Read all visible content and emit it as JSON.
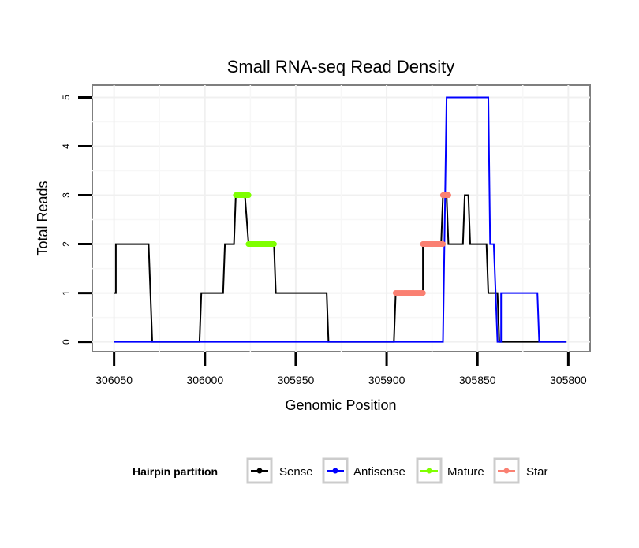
{
  "chart_data": {
    "type": "line",
    "title": "Small RNA-seq Read Density",
    "xlabel": "Genomic Position",
    "ylabel": "Total Reads",
    "xlim": [
      306062,
      305788
    ],
    "ylim": [
      -0.2,
      5.25
    ],
    "x_reversed": true,
    "grid": true,
    "x_ticks": [
      306050,
      306000,
      305950,
      305900,
      305850,
      305800
    ],
    "x_tick_labels": [
      "306050",
      "306000",
      "305950",
      "305900",
      "305850",
      "305800"
    ],
    "y_ticks": [
      0,
      1,
      2,
      3,
      4,
      5
    ],
    "y_tick_labels": [
      "0",
      "1",
      "2",
      "3",
      "4",
      "5"
    ],
    "legend": {
      "title": "Hairpin partition",
      "placement": "bottom",
      "entries": [
        "Sense",
        "Antisense",
        "Mature",
        "Star"
      ]
    },
    "series": [
      {
        "name": "Sense",
        "color": "#000000",
        "kind": "step-line",
        "points": [
          [
            306050,
            1
          ],
          [
            306049,
            1
          ],
          [
            306049,
            2
          ],
          [
            306031,
            2
          ],
          [
            306029,
            0
          ],
          [
            306003,
            0
          ],
          [
            306002,
            1
          ],
          [
            305990,
            1
          ],
          [
            305989,
            2
          ],
          [
            305984,
            2
          ],
          [
            305983,
            3
          ],
          [
            305978,
            3
          ],
          [
            305976,
            2
          ],
          [
            305962,
            2
          ],
          [
            305961,
            1
          ],
          [
            305933,
            1
          ],
          [
            305932,
            0
          ],
          [
            305896,
            0
          ],
          [
            305895,
            1
          ],
          [
            305880,
            1
          ],
          [
            305880,
            2
          ],
          [
            305870,
            2
          ],
          [
            305869,
            3
          ],
          [
            305867,
            3
          ],
          [
            305866,
            2
          ],
          [
            305858,
            2
          ],
          [
            305857,
            3
          ],
          [
            305855,
            3
          ],
          [
            305854,
            2
          ],
          [
            305845,
            2
          ],
          [
            305844,
            1
          ],
          [
            305839,
            1
          ],
          [
            305838,
            0
          ],
          [
            305801,
            0
          ]
        ]
      },
      {
        "name": "Antisense",
        "color": "#0000ff",
        "kind": "step-line",
        "points": [
          [
            306050,
            0
          ],
          [
            305869,
            0
          ],
          [
            305867,
            5
          ],
          [
            305844,
            5
          ],
          [
            305843,
            2
          ],
          [
            305841,
            2
          ],
          [
            305839,
            0
          ],
          [
            305837,
            0
          ],
          [
            305837,
            1
          ],
          [
            305817,
            1
          ],
          [
            305816,
            0
          ],
          [
            305801,
            0
          ]
        ]
      },
      {
        "name": "Mature",
        "color": "#7fff00",
        "kind": "points",
        "segments": [
          [
            [
              305983,
              3
            ],
            [
              305976,
              3
            ]
          ],
          [
            [
              305976,
              2
            ],
            [
              305962,
              2
            ]
          ]
        ]
      },
      {
        "name": "Star",
        "color": "#fa8072",
        "kind": "points",
        "segments": [
          [
            [
              305895,
              1
            ],
            [
              305880,
              1
            ]
          ],
          [
            [
              305880,
              2
            ],
            [
              305869,
              2
            ]
          ],
          [
            [
              305869,
              3
            ],
            [
              305866,
              3
            ]
          ]
        ]
      }
    ]
  }
}
